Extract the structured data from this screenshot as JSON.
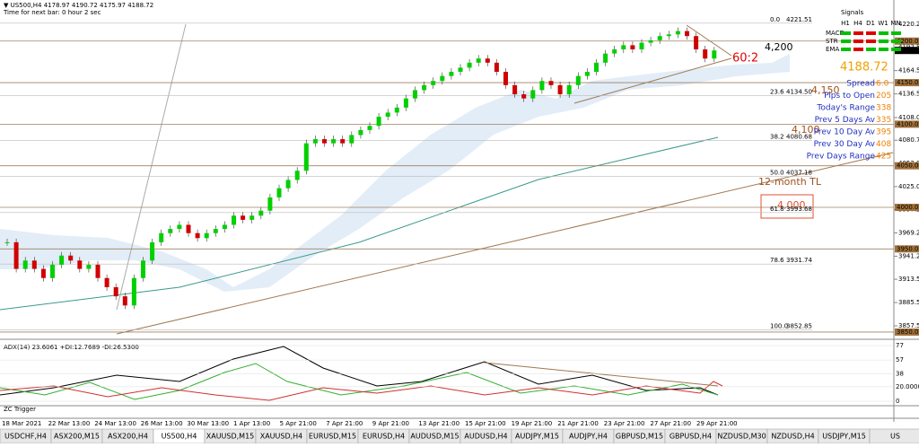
{
  "header": {
    "quote": "▼ US500,H4 4178.97 4190.72 4175.97 4188.72",
    "timer": "Time for next bar: 0 hour 2 sec"
  },
  "price_axis": {
    "ticks": [
      4220.25,
      {
        "value": 4192.5,
        "label": "4192.50"
      },
      {
        "value": 4164.5,
        "label": "4164.50"
      },
      {
        "value": 4136.5,
        "label": "4136.50"
      },
      {
        "value": 4108,
        "label": "4108.00"
      },
      4080.75,
      {
        "value": 4053,
        "label": "4053.00"
      },
      {
        "value": 4025,
        "label": "4025.00"
      },
      3997.25,
      3969.25,
      3941.25,
      {
        "value": 3913.5,
        "label": "3913.50"
      },
      {
        "value": 3885.5,
        "label": "3885.50"
      },
      {
        "value": 3857.5,
        "label": "3857.50"
      }
    ],
    "levels": [
      {
        "value": 4200,
        "label": "4200.00"
      },
      {
        "value": 4150,
        "label": "4150.00"
      },
      {
        "value": 4100,
        "label": "4100.00"
      },
      {
        "value": 4050,
        "label": "4050.00"
      },
      {
        "value": 4000,
        "label": "4000.00"
      },
      {
        "value": 3950,
        "label": "3950.00"
      },
      {
        "value": 3850,
        "label": "3850.00"
      }
    ],
    "current": 4188.72
  },
  "fib": [
    {
      "ratio": "0.0",
      "price": 4221.51
    },
    {
      "ratio": "23.6",
      "price": {
        "value": 4134.5,
        "label": "4134.50"
      }
    },
    {
      "ratio": "38.2",
      "price": 4080.68
    },
    {
      "ratio": "50.0",
      "price": 4037.18
    },
    {
      "ratio": "61.8",
      "price": 3993.68
    },
    {
      "ratio": "78.6",
      "price": 3931.74
    },
    {
      "ratio": "100.0",
      "price": 3852.85
    }
  ],
  "candles": {
    "close": [
      3958,
      3926,
      3936,
      3926,
      3915,
      3931,
      3942,
      3936,
      3926,
      3931,
      3915,
      3904,
      3893,
      3882,
      3915,
      3936,
      3958,
      3969,
      3974,
      3979,
      3969,
      3963,
      3969,
      3974,
      3979,
      3990,
      3985,
      3990,
      3996,
      4012,
      4023,
      4033,
      4044,
      4077,
      4082,
      4077,
      4082,
      4077,
      4087,
      4093,
      4098,
      4109,
      4114,
      4120,
      4131,
      4141,
      4147,
      4152,
      4158,
      4163,
      4168,
      4174,
      4179,
      4174,
      4163,
      4147,
      4136,
      4131,
      4141,
      4152,
      4147,
      4136,
      4147,
      4158,
      4163,
      4174,
      4185,
      4190,
      4195,
      4190,
      4198,
      4201,
      4206,
      4208,
      4212,
      4206,
      4190,
      4179,
      4188.72
    ],
    "up_color": "#00d000",
    "down_color": "#d00000"
  },
  "annotations": {
    "a4200": "4,200",
    "ratio": "60:2",
    "price_big": "4188.72",
    "a4150": "4,150",
    "a4100": "4,100",
    "tl": "12-month TL",
    "a4000": "4,000"
  },
  "info": [
    {
      "label": "Spread",
      "value": "6.0"
    },
    {
      "label": "Pips to Open",
      "value": "205"
    },
    {
      "label": "Today's Range",
      "value": "338"
    },
    {
      "label": "Prev 5 Days Av",
      "value": "335"
    },
    {
      "label": "Prev 10 Day Av",
      "value": "395"
    },
    {
      "label": "Prev 30 Day Av",
      "value": "408"
    },
    {
      "label": "Prev Days Range",
      "value": "425"
    }
  ],
  "signals": {
    "title": "Signals",
    "columns": [
      "H1",
      "H4",
      "D1",
      "W1",
      "MN"
    ],
    "rows": [
      {
        "name": "MACD",
        "colors": [
          "#00c000",
          "#e00000",
          "#e00000",
          "#00c000",
          "#00c000"
        ]
      },
      {
        "name": "STR",
        "colors": [
          "#00c000",
          "#e00000",
          "#e00000",
          "#00c000",
          "#00c000"
        ]
      },
      {
        "name": "EMA",
        "colors": [
          "#00c000",
          "#e00000",
          "#00c000",
          "#00c000",
          "#00c000"
        ]
      }
    ]
  },
  "adx": {
    "header": "ADX(14) 23.6061 +DI:12.7689 -DI:26.5300",
    "ticks": [
      77,
      57,
      38,
      {
        "value": 20,
        "label": "20.0000"
      },
      0
    ]
  },
  "zc": {
    "label": "ZC Trigger"
  },
  "dates": [
    "18 Mar 2021",
    "22 Mar 13:00",
    "24 Mar 13:00",
    "26 Mar 13:00",
    "30 Mar 13:00",
    "1 Apr 13:00",
    "5 Apr 21:00",
    "7 Apr 21:00",
    "9 Apr 21:00",
    "13 Apr 21:00",
    "15 Apr 21:00",
    "19 Apr 21:00",
    "21 Apr 21:00",
    "23 Apr 21:00",
    "27 Apr 21:00",
    "29 Apr 21:00"
  ],
  "tabs": {
    "items": [
      "USDCHF,H4",
      "ASX200,M15",
      "ASX200,H4",
      "US500,H4",
      "XAUUSD,M15",
      "XAUUSD,H4",
      "EURUSD,M15",
      "EURUSD,H4",
      "AUDUSD,M15",
      "AUDUSD,H4",
      "AUDJPY,M15",
      "AUDJPY,H4",
      "GBPUSD,M15",
      "GBPUSD,H4",
      "NZDUSD,M30",
      "NZDUSD,H4",
      "USDJPY,M15",
      "US"
    ],
    "active": 3
  }
}
